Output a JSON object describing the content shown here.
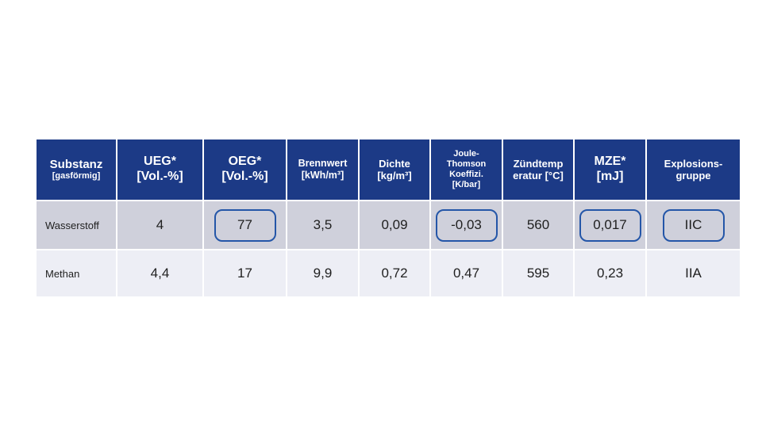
{
  "colors": {
    "header_bg": "#1c3a86",
    "header_text": "#ffffff",
    "row_wasserstoff_bg": "#cfd0db",
    "row_methan_bg": "#edeef5",
    "highlight_box_border": "#2456a8",
    "body_text": "#1f1f1f",
    "page_bg": "#ffffff"
  },
  "table": {
    "columns": [
      {
        "name": "substanz",
        "lines": [
          "Substanz",
          "[gasförmig]"
        ]
      },
      {
        "name": "ueg",
        "lines": [
          "UEG*",
          "[Vol.-%]"
        ]
      },
      {
        "name": "oeg",
        "lines": [
          "OEG*",
          "[Vol.-%]"
        ]
      },
      {
        "name": "brennwert",
        "lines": [
          "Brennwert",
          "[kWh/m³]"
        ]
      },
      {
        "name": "dichte",
        "lines": [
          "Dichte",
          "[kg/m³]"
        ]
      },
      {
        "name": "joule_thomson",
        "lines": [
          "Joule-",
          "Thomson",
          "Koeffizi.",
          "[K/bar]"
        ]
      },
      {
        "name": "zuendtemperatur",
        "lines": [
          "Zündtemp",
          "eratur [°C]"
        ]
      },
      {
        "name": "mze",
        "lines": [
          "MZE*",
          "[mJ]"
        ]
      },
      {
        "name": "explosionsgruppe",
        "lines": [
          "Explosions-",
          "gruppe"
        ]
      }
    ],
    "rows": [
      {
        "substance": "Wasserstoff",
        "cells": [
          {
            "text": "4",
            "boxed": false
          },
          {
            "text": "77",
            "boxed": true
          },
          {
            "text": "3,5",
            "boxed": false
          },
          {
            "text": "0,09",
            "boxed": false
          },
          {
            "text": "-0,03",
            "boxed": true
          },
          {
            "text": "560",
            "boxed": false
          },
          {
            "text": "0,017",
            "boxed": true
          },
          {
            "text": "IIC",
            "boxed": true
          }
        ]
      },
      {
        "substance": "Methan",
        "cells": [
          {
            "text": "4,4",
            "boxed": false
          },
          {
            "text": "17",
            "boxed": false
          },
          {
            "text": "9,9",
            "boxed": false
          },
          {
            "text": "0,72",
            "boxed": false
          },
          {
            "text": "0,47",
            "boxed": false
          },
          {
            "text": "595",
            "boxed": false
          },
          {
            "text": "0,23",
            "boxed": false
          },
          {
            "text": "IIA",
            "boxed": false
          }
        ]
      }
    ]
  },
  "chart_data": {
    "type": "table",
    "title": "",
    "columns": [
      "Substanz [gasförmig]",
      "UEG* [Vol.-%]",
      "OEG* [Vol.-%]",
      "Brennwert [kWh/m³]",
      "Dichte [kg/m³]",
      "Joule-Thomson Koeffizi. [K/bar]",
      "Zündtemperatur [°C]",
      "MZE* [mJ]",
      "Explosionsgruppe"
    ],
    "rows": [
      [
        "Wasserstoff",
        "4",
        "77",
        "3,5",
        "0,09",
        "-0,03",
        "560",
        "0,017",
        "IIC"
      ],
      [
        "Methan",
        "4,4",
        "17",
        "9,9",
        "0,72",
        "0,47",
        "595",
        "0,23",
        "IIA"
      ]
    ],
    "highlighted_cells": [
      {
        "row": "Wasserstoff",
        "column": "OEG* [Vol.-%]",
        "value": "77"
      },
      {
        "row": "Wasserstoff",
        "column": "Joule-Thomson Koeffizi. [K/bar]",
        "value": "-0,03"
      },
      {
        "row": "Wasserstoff",
        "column": "MZE* [mJ]",
        "value": "0,017"
      },
      {
        "row": "Wasserstoff",
        "column": "Explosionsgruppe",
        "value": "IIC"
      }
    ],
    "layout": {
      "header_style": "dark-blue banded",
      "grid": "thin white separators"
    }
  }
}
